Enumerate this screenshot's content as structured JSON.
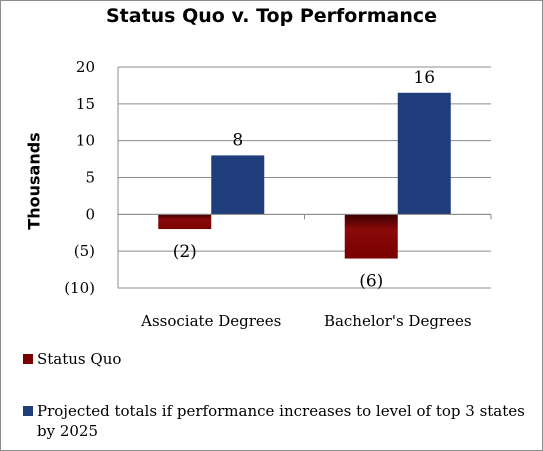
{
  "chart_data": {
    "type": "bar",
    "title": "Status Quo v. Top Performance",
    "ylabel": "Thousands",
    "xlabel": "",
    "categories": [
      "Associate Degrees",
      "Bachelor's Degrees"
    ],
    "ylim": [
      -10,
      20
    ],
    "yticks": [
      20,
      15,
      10,
      5,
      0,
      -5,
      -10
    ],
    "ytick_labels": [
      "20",
      "15",
      "10",
      "5",
      "0",
      "(5)",
      "(10)"
    ],
    "grid": true,
    "legend_position": "bottom",
    "series": [
      {
        "name": "Status Quo",
        "values": [
          -2,
          -6
        ],
        "labels": [
          "(2)",
          "(6)"
        ],
        "color": "#7a0000"
      },
      {
        "name": "Projected totals if performance increases to level of top 3 states by 2025",
        "values": [
          8,
          16.5
        ],
        "labels": [
          "8",
          "16"
        ],
        "color": "#1f3d7a"
      }
    ]
  }
}
